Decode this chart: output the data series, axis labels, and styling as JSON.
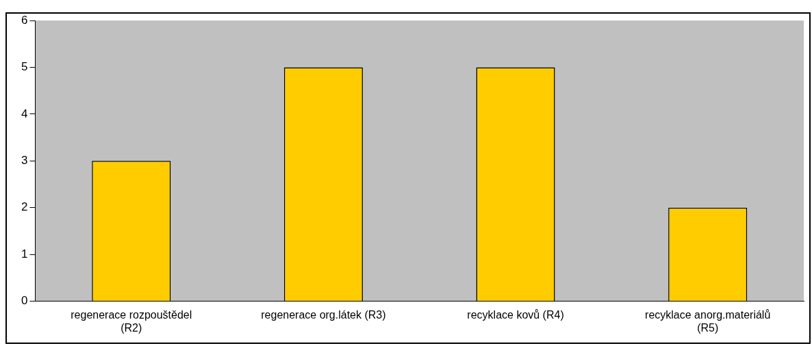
{
  "chart_data": {
    "type": "bar",
    "categories": [
      "regenerace rozpouštědel (R2)",
      "regenerace org.látek (R3)",
      "recyklace kovů (R4)",
      "recyklace anorg.materiálů (R5)"
    ],
    "values": [
      3,
      5,
      5,
      2
    ],
    "color": "#ffcc00",
    "ylim": [
      0,
      6
    ],
    "yticks": [
      0,
      1,
      2,
      3,
      4,
      5,
      6
    ],
    "grid": false,
    "legend": false
  }
}
